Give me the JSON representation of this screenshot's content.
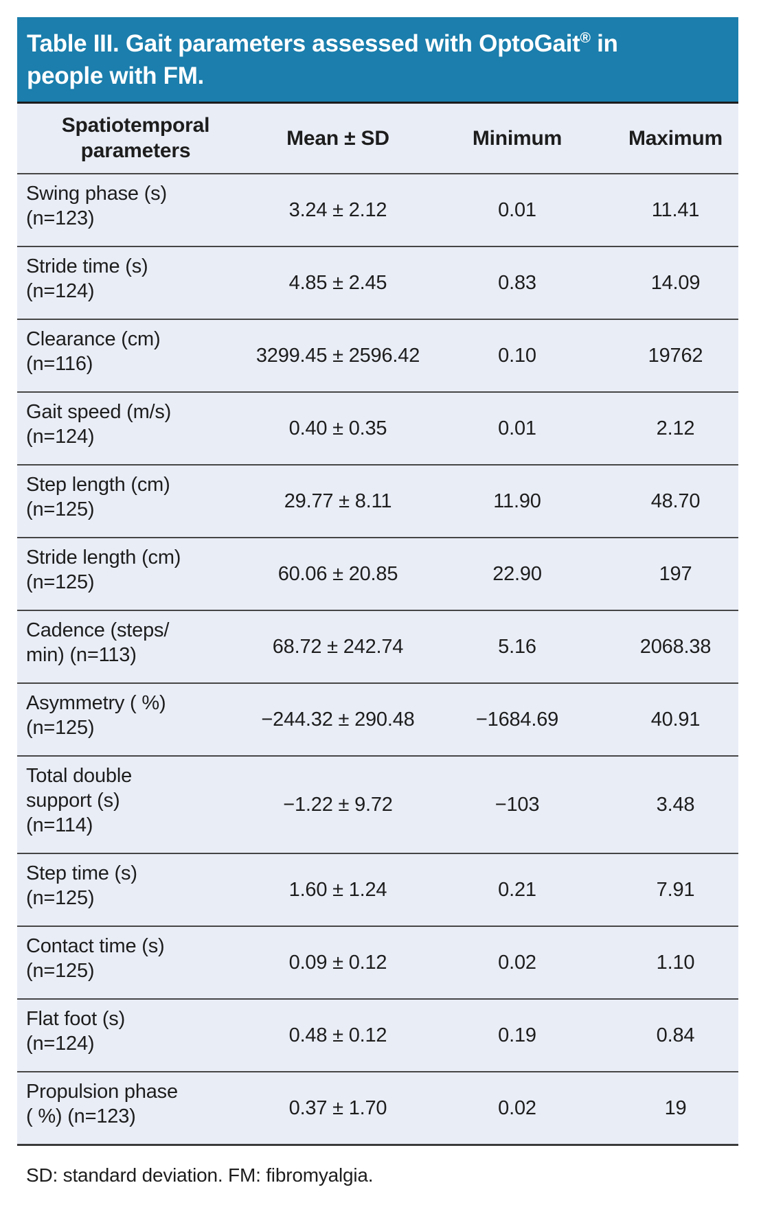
{
  "title": {
    "line1_before_mark": "Table III. Gait parameters assessed with OptoGait",
    "registered_mark": "®",
    "line1_after_mark": " in",
    "line2": "people with FM."
  },
  "table": {
    "columns": [
      {
        "label": "Spatiotemporal parameters",
        "lines": [
          "Spatiotemporal",
          "parameters"
        ]
      },
      {
        "label": "Mean ± SD"
      },
      {
        "label": "Minimum"
      },
      {
        "label": "Maximum"
      }
    ],
    "rows": [
      {
        "parameter": "Swing phase (s) (n=123)",
        "parameter_lines": [
          "Swing phase (s)",
          "(n=123)"
        ],
        "mean_sd": "3.24 ± 2.12",
        "minimum": "0.01",
        "maximum": "11.41"
      },
      {
        "parameter": "Stride time (s) (n=124)",
        "parameter_lines": [
          "Stride time (s)",
          "(n=124)"
        ],
        "mean_sd": "4.85 ± 2.45",
        "minimum": "0.83",
        "maximum": "14.09"
      },
      {
        "parameter": "Clearance (cm) (n=116)",
        "parameter_lines": [
          "Clearance (cm)",
          "(n=116)"
        ],
        "mean_sd": "3299.45 ± 2596.42",
        "minimum": "0.10",
        "maximum": "19762"
      },
      {
        "parameter": "Gait speed (m/s) (n=124)",
        "parameter_lines": [
          "Gait speed (m/s)",
          "(n=124)"
        ],
        "mean_sd": "0.40 ± 0.35",
        "minimum": "0.01",
        "maximum": "2.12"
      },
      {
        "parameter": "Step length (cm) (n=125)",
        "parameter_lines": [
          "Step length (cm)",
          "(n=125)"
        ],
        "mean_sd": "29.77 ± 8.11",
        "minimum": "11.90",
        "maximum": "48.70"
      },
      {
        "parameter": "Stride length (cm) (n=125)",
        "parameter_lines": [
          "Stride length (cm)",
          "(n=125)"
        ],
        "mean_sd": "60.06 ± 20.85",
        "minimum": "22.90",
        "maximum": "197"
      },
      {
        "parameter": "Cadence (steps/min) (n=113)",
        "parameter_lines": [
          "Cadence (steps/",
          "min) (n=113)"
        ],
        "mean_sd": "68.72 ± 242.74",
        "minimum": "5.16",
        "maximum": "2068.38"
      },
      {
        "parameter": "Asymmetry ( %) (n=125)",
        "parameter_lines": [
          "Asymmetry ( %)",
          "(n=125)"
        ],
        "mean_sd": "−244.32 ± 290.48",
        "minimum": "−1684.69",
        "maximum": "40.91"
      },
      {
        "parameter": "Total double support (s) (n=114)",
        "parameter_lines": [
          "Total double",
          "support (s)",
          "(n=114)"
        ],
        "mean_sd": "−1.22 ± 9.72",
        "minimum": "−103",
        "maximum": "3.48"
      },
      {
        "parameter": "Step time (s) (n=125)",
        "parameter_lines": [
          "Step time (s)",
          "(n=125)"
        ],
        "mean_sd": "1.60 ± 1.24",
        "minimum": "0.21",
        "maximum": "7.91"
      },
      {
        "parameter": "Contact time (s) (n=125)",
        "parameter_lines": [
          "Contact time (s)",
          "(n=125)"
        ],
        "mean_sd": "0.09 ± 0.12",
        "minimum": "0.02",
        "maximum": "1.10"
      },
      {
        "parameter": "Flat foot (s) (n=124)",
        "parameter_lines": [
          "Flat foot (s)",
          "(n=124)"
        ],
        "mean_sd": "0.48 ± 0.12",
        "minimum": "0.19",
        "maximum": "0.84"
      },
      {
        "parameter": "Propulsion phase ( %) (n=123)",
        "parameter_lines": [
          "Propulsion phase",
          "( %) (n=123)"
        ],
        "mean_sd": "0.37 ± 1.70",
        "minimum": "0.02",
        "maximum": "19"
      }
    ]
  },
  "footnote": "SD: standard deviation. FM: fibromyalgia.",
  "colors": {
    "title_bar_bg": "#1b7eac",
    "title_text": "#ffffff",
    "table_bg": "#e9edf6",
    "rule_line": "#454545",
    "body_text": "#1d1d1d"
  }
}
